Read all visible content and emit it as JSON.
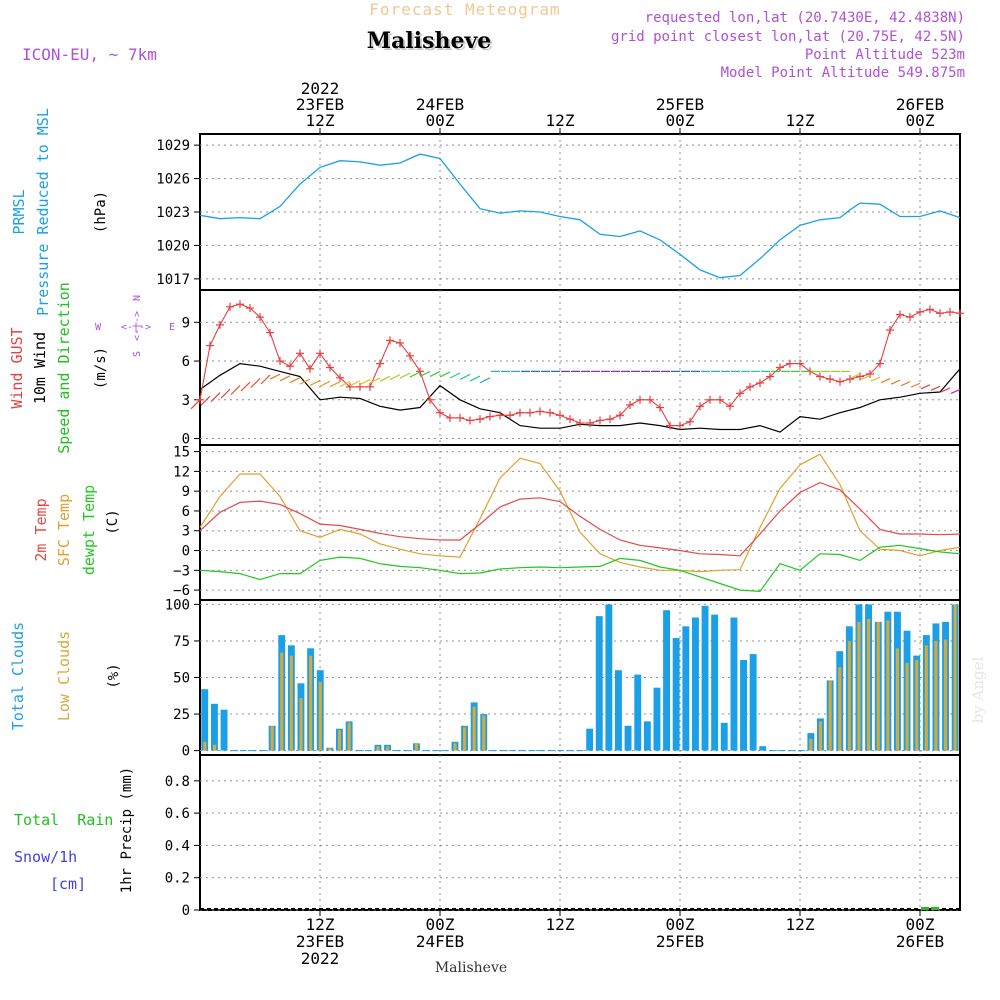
{
  "header": {
    "subtitle": "Forecast Meteogram",
    "title": "Malisheve",
    "model": "ICON-EU, ~ 7km",
    "requested": "requested lon,lat (20.7430E, 42.4838N)",
    "gridpoint": "grid point closest lon,lat (20.75E, 42.5N)",
    "point_alt": "Point Altitude 523m",
    "model_alt": "Model Point Altitude 549.875m"
  },
  "time_axis": {
    "top_ticks": [
      {
        "h": 12,
        "lines": [
          "2022",
          "23FEB",
          "12Z"
        ]
      },
      {
        "h": 24,
        "lines": [
          "24FEB",
          "00Z"
        ]
      },
      {
        "h": 36,
        "lines": [
          "12Z"
        ]
      },
      {
        "h": 48,
        "lines": [
          "25FEB",
          "00Z"
        ]
      },
      {
        "h": 60,
        "lines": [
          "12Z"
        ]
      },
      {
        "h": 72,
        "lines": [
          "26FEB",
          "00Z"
        ]
      }
    ],
    "bottom_ticks": [
      {
        "h": 12,
        "lines": [
          "12Z",
          "23FEB",
          "2022"
        ]
      },
      {
        "h": 24,
        "lines": [
          "00Z",
          "24FEB"
        ]
      },
      {
        "h": 36,
        "lines": [
          "12Z"
        ]
      },
      {
        "h": 48,
        "lines": [
          "00Z",
          "25FEB"
        ]
      },
      {
        "h": 60,
        "lines": [
          "12Z"
        ]
      },
      {
        "h": 72,
        "lines": [
          "00Z",
          "26FEB"
        ]
      }
    ],
    "footer_label": "Malisheve",
    "hour_range": [
      0,
      76
    ]
  },
  "panels": {
    "pressure": {
      "labels": [
        "PRMSL",
        "Pressure Reduced to MSL"
      ],
      "unit": "(hPa)",
      "ticks": [
        "1017",
        "1020",
        "1023",
        "1026",
        "1029"
      ]
    },
    "wind": {
      "labels": [
        "Wind GUST",
        "10m Wind",
        "Speed and Direction"
      ],
      "unit": "(m/s)",
      "ticks": [
        "0",
        "3",
        "6",
        "9"
      ],
      "compass": {
        "n": "N",
        "s": "S",
        "w": "W",
        "e": "E",
        "h": "<-|->"
      }
    },
    "temperature": {
      "labels": [
        "2m Temp",
        "SFC Temp",
        "dewpt Temp"
      ],
      "unit": "(C)",
      "ticks": [
        "−6",
        "−3",
        "0",
        "3",
        "6",
        "9",
        "12",
        "15"
      ]
    },
    "clouds": {
      "labels": [
        "Total Clouds",
        "Low Clouds"
      ],
      "unit": "(%)",
      "ticks": [
        "0",
        "25",
        "50",
        "75",
        "100"
      ],
      "watermark": "by Angel"
    },
    "precip": {
      "labels": [
        "Total  Rain",
        "Snow/1h",
        "[cm]"
      ],
      "unit": "1hr Precip (mm)",
      "ticks": [
        "0",
        "0.2",
        "0.4",
        "0.6",
        "0.8"
      ]
    }
  },
  "colors": {
    "pressure": "#1ba0e8",
    "gust": "#e84040",
    "wind": "#000000",
    "temp2m": "#e84848",
    "sfc": "#e0a030",
    "dewpt": "#20c820",
    "total_cloud": "#1ba0e8",
    "low_cloud": "#d8a838",
    "rain": "#20c020",
    "snow": "#4040e0",
    "purple": "#b050d8",
    "orange_title": "#f0c890",
    "grid": "#909090"
  },
  "chart_data": [
    {
      "type": "line",
      "title": "PRMSL Pressure Reduced to MSL",
      "ylabel": "hPa",
      "ylim": [
        1016,
        1030
      ],
      "series": [
        {
          "name": "PRMSL",
          "x": [
            0,
            2,
            4,
            6,
            8,
            10,
            12,
            14,
            16,
            18,
            20,
            22,
            24,
            26,
            28,
            30,
            32,
            34,
            36,
            38,
            40,
            42,
            44,
            46,
            48,
            50,
            52,
            54,
            56,
            58,
            60,
            62,
            64,
            65,
            66,
            68,
            70,
            72,
            74,
            76
          ],
          "values": [
            1022.7,
            1022.4,
            1022.5,
            1022.4,
            1023.5,
            1025.5,
            1027.0,
            1027.6,
            1027.5,
            1027.2,
            1027.4,
            1028.2,
            1027.8,
            1025.5,
            1023.3,
            1022.9,
            1023.1,
            1023.0,
            1022.6,
            1022.3,
            1021.0,
            1020.8,
            1021.3,
            1020.5,
            1019.2,
            1017.8,
            1017.1,
            1017.3,
            1018.8,
            1020.5,
            1021.8,
            1022.3,
            1022.5,
            1023.2,
            1023.8,
            1023.7,
            1022.6,
            1022.6,
            1023.1,
            1022.5
          ]
        }
      ]
    },
    {
      "type": "line",
      "title": "Wind GUST / 10m Wind Speed and Direction",
      "ylabel": "m/s",
      "ylim": [
        -0.5,
        11.5
      ],
      "series": [
        {
          "name": "Wind GUST",
          "x": [
            0,
            1,
            2,
            3,
            4,
            5,
            6,
            7,
            8,
            9,
            10,
            11,
            12,
            13,
            14,
            15,
            16,
            17,
            18,
            19,
            20,
            21,
            22,
            23,
            24,
            25,
            26,
            27,
            28,
            29,
            30,
            31,
            32,
            33,
            34,
            35,
            36,
            37,
            38,
            39,
            40,
            41,
            42,
            43,
            44,
            45,
            46,
            47,
            48,
            49,
            50,
            51,
            52,
            53,
            54,
            55,
            56,
            57,
            58,
            59,
            60,
            61,
            62,
            63,
            64,
            65,
            66,
            67,
            68,
            69,
            70,
            71,
            72,
            73,
            74,
            75,
            76
          ],
          "values": [
            3.0,
            7.2,
            8.8,
            10.2,
            10.4,
            10.1,
            9.4,
            8.2,
            6.0,
            5.6,
            6.6,
            5.4,
            6.6,
            5.5,
            4.7,
            4.0,
            4.0,
            4.0,
            5.8,
            7.6,
            7.4,
            6.4,
            5.2,
            3.0,
            2.0,
            1.6,
            1.6,
            1.4,
            1.5,
            1.7,
            1.8,
            1.8,
            2.0,
            2.0,
            2.1,
            2.0,
            1.8,
            1.5,
            1.2,
            1.2,
            1.4,
            1.5,
            1.8,
            2.6,
            3.0,
            3.0,
            2.4,
            1.0,
            1.0,
            1.3,
            2.5,
            3.0,
            3.0,
            2.5,
            3.5,
            4.0,
            4.3,
            4.8,
            5.5,
            5.8,
            5.8,
            5.2,
            4.8,
            4.6,
            4.4,
            4.6,
            4.8,
            5.0,
            5.8,
            8.4,
            9.6,
            9.4,
            9.8,
            10.0,
            9.7,
            9.8,
            9.7
          ]
        },
        {
          "name": "10m Wind",
          "x": [
            0,
            2,
            4,
            6,
            8,
            10,
            12,
            14,
            16,
            18,
            20,
            22,
            24,
            26,
            28,
            30,
            32,
            34,
            36,
            38,
            40,
            42,
            44,
            46,
            48,
            50,
            52,
            54,
            56,
            58,
            60,
            62,
            64,
            66,
            68,
            70,
            72,
            74,
            76
          ],
          "values": [
            3.8,
            4.9,
            5.8,
            5.6,
            5.2,
            4.8,
            3.0,
            3.2,
            3.1,
            2.5,
            2.2,
            2.4,
            4.1,
            3.0,
            2.3,
            2.0,
            1.0,
            0.8,
            0.8,
            1.1,
            1.0,
            1.0,
            1.2,
            1.0,
            0.7,
            0.8,
            0.7,
            0.7,
            1.0,
            0.5,
            1.7,
            1.5,
            2.0,
            2.4,
            3.0,
            3.2,
            3.5,
            3.6,
            5.4
          ]
        }
      ]
    },
    {
      "type": "line",
      "title": "2m Temp / SFC Temp / dewpt Temp",
      "ylabel": "C",
      "ylim": [
        -7.5,
        16
      ],
      "series": [
        {
          "name": "2m Temp",
          "x": [
            0,
            2,
            4,
            6,
            8,
            10,
            12,
            14,
            16,
            18,
            20,
            22,
            24,
            26,
            28,
            30,
            32,
            34,
            36,
            38,
            40,
            42,
            44,
            46,
            48,
            50,
            52,
            54,
            56,
            58,
            60,
            62,
            64,
            66,
            68,
            70,
            72,
            74,
            76
          ],
          "values": [
            3.0,
            5.8,
            7.3,
            7.5,
            7.0,
            5.6,
            4.0,
            3.8,
            3.2,
            2.6,
            2.1,
            1.8,
            1.6,
            1.6,
            4.0,
            6.6,
            7.8,
            8.0,
            7.4,
            5.2,
            3.2,
            1.6,
            0.8,
            0.4,
            0.0,
            -0.5,
            -0.6,
            -0.8,
            2.5,
            6.0,
            8.8,
            10.3,
            9.2,
            6.3,
            3.2,
            2.5,
            2.5,
            2.4,
            2.5
          ]
        },
        {
          "name": "SFC Temp",
          "x": [
            0,
            2,
            4,
            6,
            8,
            10,
            12,
            14,
            16,
            18,
            20,
            22,
            24,
            26,
            28,
            30,
            32,
            34,
            36,
            38,
            40,
            42,
            44,
            46,
            48,
            50,
            52,
            54,
            56,
            58,
            60,
            62,
            64,
            66,
            68,
            70,
            72,
            74,
            76
          ],
          "values": [
            3.5,
            8.2,
            11.6,
            11.6,
            8.2,
            3.0,
            2.0,
            3.2,
            2.5,
            1.0,
            0.2,
            -0.5,
            -0.8,
            -1.0,
            4.8,
            11.0,
            14.0,
            13.2,
            9.0,
            2.8,
            -0.5,
            -1.8,
            -2.5,
            -3.0,
            -3.0,
            -3.2,
            -3.0,
            -2.9,
            3.5,
            9.4,
            13.0,
            14.6,
            10.0,
            3.0,
            0.2,
            0.0,
            -0.8,
            0.0,
            0.5
          ]
        },
        {
          "name": "dewpt Temp",
          "x": [
            0,
            2,
            4,
            6,
            8,
            10,
            12,
            14,
            16,
            18,
            20,
            22,
            24,
            26,
            28,
            30,
            32,
            34,
            36,
            38,
            40,
            42,
            44,
            46,
            48,
            50,
            52,
            54,
            56,
            58,
            60,
            62,
            64,
            66,
            68,
            70,
            72,
            74,
            76
          ],
          "values": [
            -3.0,
            -3.2,
            -3.5,
            -4.4,
            -3.5,
            -3.5,
            -1.5,
            -1.0,
            -1.2,
            -2.0,
            -2.4,
            -2.6,
            -3.0,
            -3.5,
            -3.4,
            -2.8,
            -2.6,
            -2.5,
            -2.6,
            -2.5,
            -2.4,
            -1.2,
            -1.5,
            -2.5,
            -3.0,
            -4.0,
            -5.0,
            -6.0,
            -6.2,
            -2.0,
            -3.0,
            -0.5,
            -0.6,
            -1.5,
            0.5,
            0.8,
            0.3,
            -0.2,
            -0.5
          ]
        }
      ]
    },
    {
      "type": "bar",
      "title": "Total Clouds / Low Clouds",
      "ylabel": "%",
      "ylim": [
        -3,
        103
      ],
      "series": [
        {
          "name": "Total Clouds",
          "values": [
            42,
            32,
            28,
            0,
            0,
            0,
            0,
            17,
            79,
            72,
            46,
            70,
            55,
            2,
            15,
            20,
            0,
            0,
            4,
            4,
            0,
            0,
            5,
            0,
            0,
            0,
            6,
            17,
            33,
            25,
            0,
            0,
            0,
            0,
            0,
            0,
            0,
            0,
            0,
            0,
            15,
            92,
            100,
            55,
            17,
            52,
            20,
            43,
            96,
            77,
            85,
            91,
            99,
            93,
            19,
            91,
            62,
            66,
            3,
            0,
            0,
            0,
            0,
            12,
            22,
            48,
            68,
            85,
            100,
            100,
            88,
            95,
            95,
            82,
            65,
            79,
            87,
            88,
            100
          ]
        },
        {
          "name": "Low Clouds",
          "values": [
            6,
            4,
            0,
            0,
            0,
            0,
            0,
            17,
            67,
            65,
            36,
            65,
            47,
            2,
            14,
            19,
            0,
            0,
            3,
            3,
            0,
            0,
            5,
            0,
            0,
            0,
            5,
            16,
            30,
            24,
            0,
            0,
            0,
            0,
            0,
            0,
            0,
            0,
            0,
            0,
            0,
            0,
            0,
            0,
            0,
            0,
            0,
            0,
            0,
            0,
            0,
            0,
            0,
            0,
            0,
            0,
            0,
            0,
            0,
            0,
            0,
            0,
            0,
            8,
            20,
            48,
            57,
            75,
            88,
            90,
            88,
            89,
            70,
            60,
            62,
            72,
            75,
            76,
            100
          ]
        }
      ]
    },
    {
      "type": "bar",
      "title": "1hr Precip",
      "ylabel": "mm",
      "ylim": [
        0,
        0.96
      ],
      "series": [
        {
          "name": "Total Rain",
          "x": [
            72.5,
            73.5
          ],
          "values": [
            0.01,
            0.005
          ]
        }
      ]
    }
  ]
}
